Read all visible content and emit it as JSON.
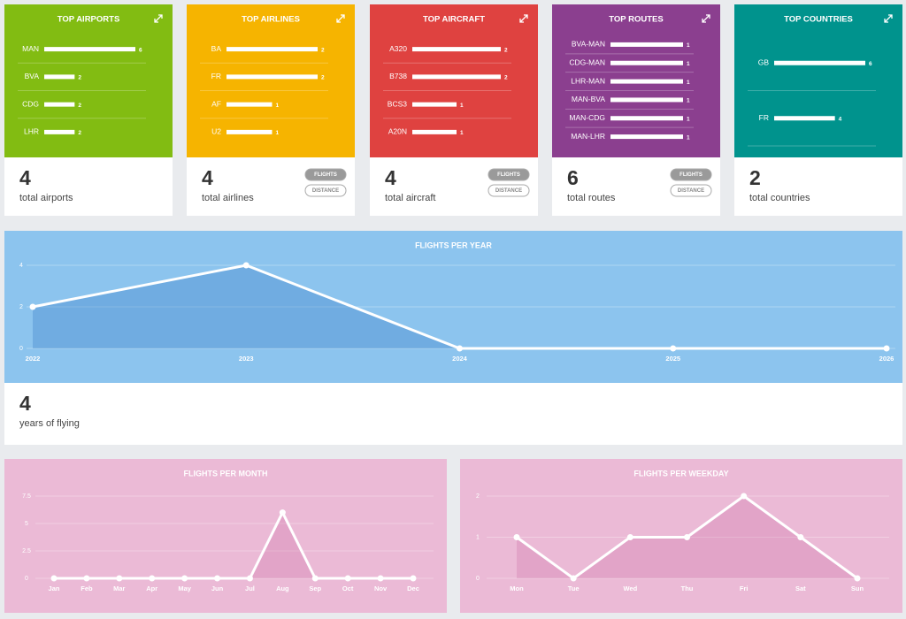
{
  "chart_data": [
    {
      "type": "hbar",
      "title": "TOP AIRPORTS",
      "categories": [
        "MAN",
        "BVA",
        "CDG",
        "LHR"
      ],
      "values": [
        6,
        2,
        2,
        2
      ],
      "xlim": [
        0,
        6
      ],
      "color": "#ffffff",
      "background": "#82bc12"
    },
    {
      "type": "hbar",
      "title": "TOP AIRLINES",
      "categories": [
        "BA",
        "FR",
        "AF",
        "U2"
      ],
      "values": [
        2,
        2,
        1,
        1
      ],
      "xlim": [
        0,
        2
      ],
      "color": "#ffffff",
      "background": "#f6b400"
    },
    {
      "type": "hbar",
      "title": "TOP AIRCRAFT",
      "categories": [
        "A320",
        "B738",
        "BCS3",
        "A20N"
      ],
      "values": [
        2,
        2,
        1,
        1
      ],
      "xlim": [
        0,
        2
      ],
      "color": "#ffffff",
      "background": "#df4240"
    },
    {
      "type": "hbar",
      "title": "TOP ROUTES",
      "categories": [
        "BVA-MAN",
        "CDG-MAN",
        "LHR-MAN",
        "MAN-BVA",
        "MAN-CDG",
        "MAN-LHR"
      ],
      "values": [
        1,
        1,
        1,
        1,
        1,
        1
      ],
      "xlim": [
        0,
        1
      ],
      "color": "#ffffff",
      "background": "#8b3f8f"
    },
    {
      "type": "hbar",
      "title": "TOP COUNTRIES",
      "categories": [
        "GB",
        "FR"
      ],
      "values": [
        6,
        4
      ],
      "xlim": [
        0,
        6
      ],
      "color": "#ffffff",
      "background": "#00938d"
    },
    {
      "type": "area",
      "title": "FLIGHTS PER YEAR",
      "categories": [
        "2022",
        "2023",
        "2024",
        "2025",
        "2026"
      ],
      "values": [
        2,
        4,
        0,
        0,
        0
      ],
      "ylim": [
        0,
        4
      ],
      "yticks": [
        0,
        2,
        4
      ],
      "grid": true,
      "color": "#ffffff",
      "area_color": "rgba(60,130,200,0.35)",
      "background": "#8cc4ee"
    },
    {
      "type": "area",
      "title": "FLIGHTS PER MONTH",
      "categories": [
        "Jan",
        "Feb",
        "Mar",
        "Apr",
        "May",
        "Jun",
        "Jul",
        "Aug",
        "Sep",
        "Oct",
        "Nov",
        "Dec"
      ],
      "values": [
        0,
        0,
        0,
        0,
        0,
        0,
        0,
        6,
        0,
        0,
        0,
        0
      ],
      "ylim": [
        0,
        7.5
      ],
      "yticks": [
        0,
        2.5,
        5,
        7.5
      ],
      "grid": true,
      "color": "#ffffff",
      "area_color": "rgba(200,100,160,0.25)",
      "background": "#ebbad6"
    },
    {
      "type": "area",
      "title": "FLIGHTS PER WEEKDAY",
      "categories": [
        "Mon",
        "Tue",
        "Wed",
        "Thu",
        "Fri",
        "Sat",
        "Sun"
      ],
      "values": [
        1,
        0,
        1,
        1,
        2,
        1,
        0
      ],
      "ylim": [
        0,
        2
      ],
      "yticks": [
        0,
        1,
        2
      ],
      "grid": true,
      "color": "#ffffff",
      "area_color": "rgba(200,100,160,0.25)",
      "background": "#ebbad6"
    }
  ],
  "cards": [
    {
      "count": 4,
      "caption": "total airports"
    },
    {
      "count": 4,
      "caption": "total airlines",
      "buttons": [
        "FLIGHTS",
        "DISTANCE"
      ]
    },
    {
      "count": 4,
      "caption": "total aircraft",
      "buttons": [
        "FLIGHTS",
        "DISTANCE"
      ]
    },
    {
      "count": 6,
      "caption": "total routes",
      "buttons": [
        "FLIGHTS",
        "DISTANCE"
      ]
    },
    {
      "count": 2,
      "caption": "total countries"
    }
  ],
  "year_summary": {
    "count": 4,
    "caption": "years of flying"
  }
}
